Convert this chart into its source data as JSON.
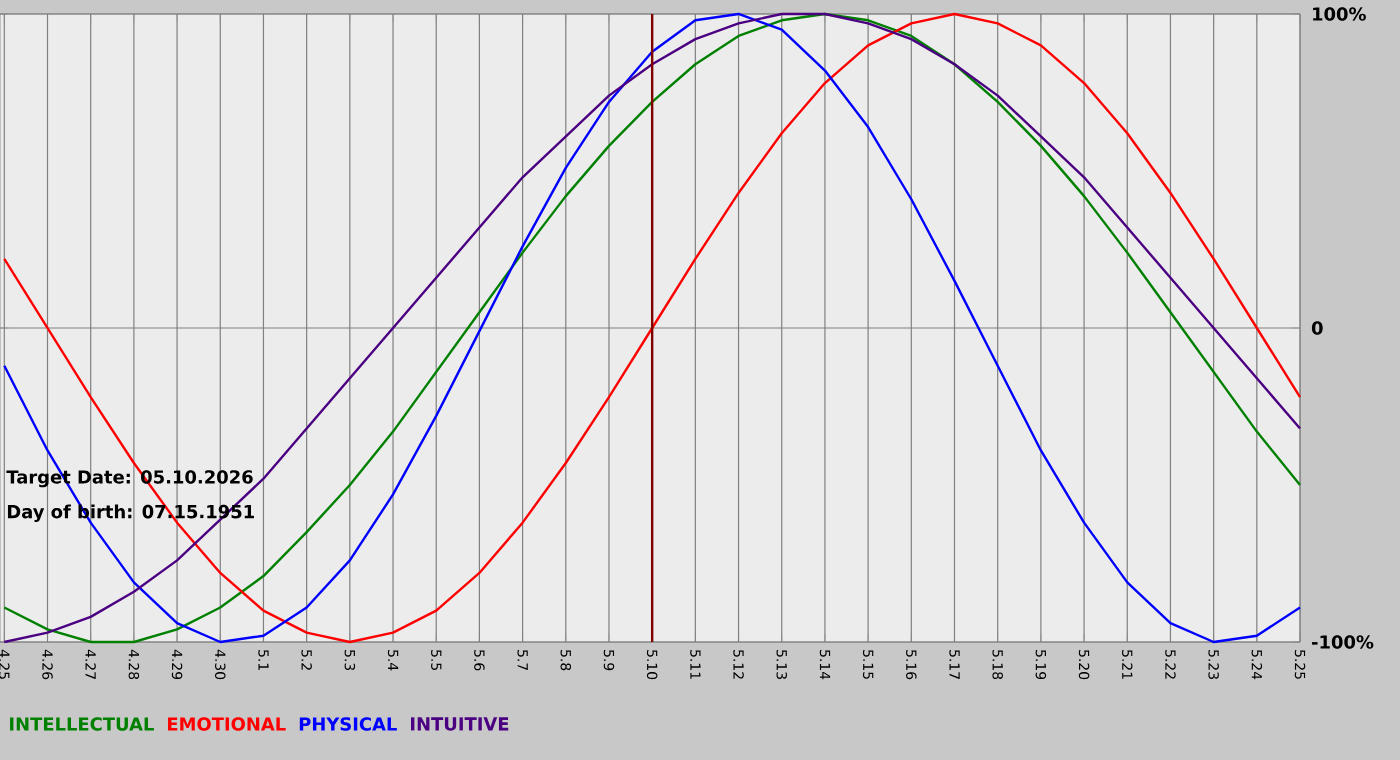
{
  "chart_data": {
    "type": "line",
    "categories": [
      "4.25",
      "4.26",
      "4.27",
      "4.28",
      "4.29",
      "4.30",
      "5.1",
      "5.2",
      "5.3",
      "5.4",
      "5.5",
      "5.6",
      "5.7",
      "5.8",
      "5.9",
      "5.10",
      "5.11",
      "5.12",
      "5.13",
      "5.14",
      "5.15",
      "5.16",
      "5.17",
      "5.18",
      "5.19",
      "5.20",
      "5.21",
      "5.22",
      "5.23",
      "5.24",
      "5.25"
    ],
    "series": [
      {
        "name": "INTELLECTUAL",
        "color": "#008000",
        "values": [
          -89,
          -96,
          -100,
          -100,
          -96,
          -89,
          -79,
          -65,
          -50,
          -33,
          -14,
          5,
          24,
          42,
          58,
          72,
          84,
          93,
          98,
          100,
          98,
          93,
          84,
          72,
          58,
          42,
          24,
          5,
          -14,
          -33,
          -50
        ]
      },
      {
        "name": "EMOTIONAL",
        "color": "#ff0000",
        "values": [
          22,
          0,
          -22,
          -43,
          -62,
          -78,
          -90,
          -97,
          -100,
          -97,
          -90,
          -78,
          -62,
          -43,
          -22,
          0,
          22,
          43,
          62,
          78,
          90,
          97,
          100,
          97,
          90,
          78,
          62,
          43,
          22,
          0,
          -22
        ]
      },
      {
        "name": "PHYSICAL",
        "color": "#0000ff",
        "values": [
          -12,
          -39,
          -62,
          -81,
          -94,
          -100,
          -98,
          -89,
          -74,
          -53,
          -28,
          -1,
          26,
          51,
          72,
          88,
          98,
          100,
          95,
          82,
          64,
          41,
          15,
          -12,
          -39,
          -62,
          -81,
          -94,
          -100,
          -98,
          -89
        ]
      },
      {
        "name": "INTUITIVE",
        "color": "#4b0082",
        "values": [
          -100,
          -97,
          -92,
          -84,
          -74,
          -61,
          -48,
          -32,
          -16,
          0,
          16,
          32,
          48,
          61,
          74,
          84,
          92,
          97,
          100,
          100,
          97,
          92,
          84,
          74,
          61,
          48,
          32,
          16,
          0,
          -16,
          -32
        ]
      }
    ],
    "ylim": [
      -100,
      100
    ],
    "yticks": [
      {
        "value": -100,
        "label": "-100%"
      },
      0,
      {
        "value": 100,
        "label": "100%"
      }
    ],
    "ref_lines": [
      {
        "axis": "x",
        "value": "5.10",
        "color": "#800000"
      }
    ],
    "annotations": [
      "Target Date: 05.10.2026",
      "Day of birth: 07.15.1951"
    ],
    "grid": true,
    "legend": "bottom left",
    "marker": "none",
    "line_style": "solid"
  }
}
